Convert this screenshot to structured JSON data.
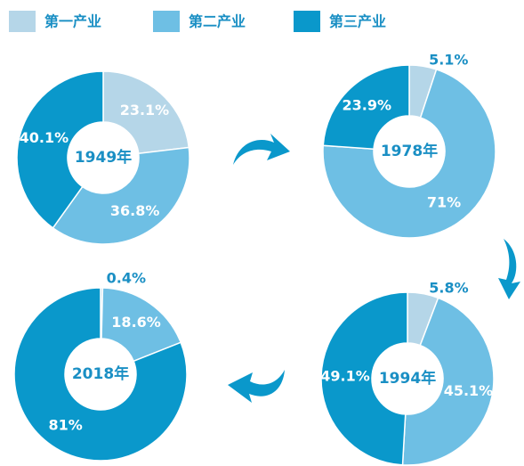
{
  "chart_data": [
    {
      "type": "pie",
      "title": "1949年",
      "categories": [
        "第一产业",
        "第二产业",
        "第三产业"
      ],
      "values": [
        23.1,
        36.8,
        40.1
      ],
      "value_labels": [
        "23.1%",
        "36.8%",
        "40.1%"
      ],
      "colors": [
        "#b5d6e8",
        "#6ebfe4",
        "#0a98cb"
      ]
    },
    {
      "type": "pie",
      "title": "1978年",
      "categories": [
        "第一产业",
        "第二产业",
        "第三产业"
      ],
      "values": [
        5.1,
        71,
        23.9
      ],
      "value_labels": [
        "5.1%",
        "71%",
        "23.9%"
      ],
      "colors": [
        "#b5d6e8",
        "#6ebfe4",
        "#0a98cb"
      ]
    },
    {
      "type": "pie",
      "title": "2018年",
      "categories": [
        "第一产业",
        "第二产业",
        "第三产业"
      ],
      "values": [
        0.4,
        18.6,
        81
      ],
      "value_labels": [
        "0.4%",
        "18.6%",
        "81%"
      ],
      "colors": [
        "#b5d6e8",
        "#6ebfe4",
        "#0a98cb"
      ]
    },
    {
      "type": "pie",
      "title": "1994年",
      "categories": [
        "第一产业",
        "第二产业",
        "第三产业"
      ],
      "values": [
        5.8,
        45.1,
        49.1
      ],
      "value_labels": [
        "5.8%",
        "45.1%",
        "49.1%"
      ],
      "colors": [
        "#b5d6e8",
        "#6ebfe4",
        "#0a98cb"
      ]
    }
  ]
}
